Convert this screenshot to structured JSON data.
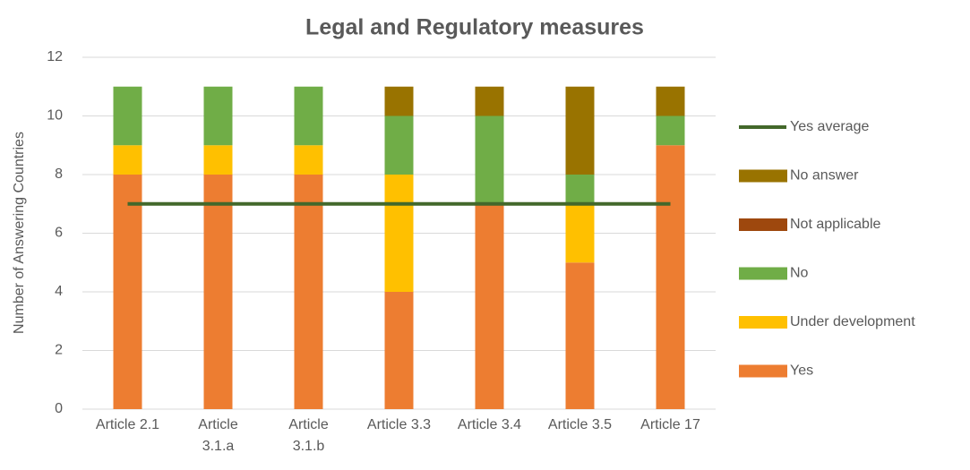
{
  "chart_data": {
    "type": "bar",
    "stacked": true,
    "title": "Legal and Regulatory measures",
    "y_label": "Number of Answering Countries",
    "categories": [
      "Article 2.1",
      "Article 3.1.a",
      "Article 3.1.b",
      "Article 3.3",
      "Article 3.4",
      "Article 3.5",
      "Article 17"
    ],
    "series": [
      {
        "name": "Yes",
        "color": "#ED7D31",
        "values": [
          8,
          8,
          8,
          4,
          7,
          5,
          9
        ]
      },
      {
        "name": "Under development",
        "color": "#FFC000",
        "values": [
          1,
          1,
          1,
          4,
          0,
          2,
          0
        ]
      },
      {
        "name": "No",
        "color": "#70AD47",
        "values": [
          2,
          2,
          2,
          2,
          3,
          1,
          1
        ]
      },
      {
        "name": "Not applicable",
        "color": "#9E480E",
        "values": [
          0,
          0,
          0,
          0,
          0,
          0,
          0
        ]
      },
      {
        "name": "No answer",
        "color": "#997300",
        "values": [
          0,
          0,
          0,
          1,
          1,
          3,
          1
        ]
      },
      {
        "name": "Yes average",
        "type": "line",
        "color": "#43682B",
        "values": [
          7,
          7,
          7,
          7,
          7,
          7,
          7
        ]
      }
    ],
    "ylim": [
      0,
      12
    ],
    "yticks": [
      0,
      2,
      4,
      6,
      8,
      10,
      12
    ],
    "grid": true,
    "legend": "right"
  }
}
